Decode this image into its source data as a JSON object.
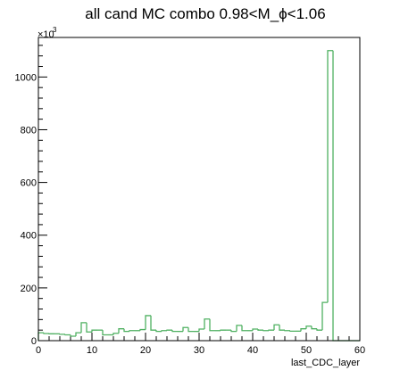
{
  "chart_data": {
    "type": "bar",
    "title": "all cand MC combo 0.98<M_ϕ<1.06",
    "xlabel": "last_CDC_layer",
    "ylabel": "",
    "y_multiplier_label": "×10",
    "y_multiplier_exponent": "3",
    "xlim": [
      0,
      60
    ],
    "ylim": [
      0,
      1150
    ],
    "x_ticks": [
      0,
      10,
      20,
      30,
      40,
      50,
      60
    ],
    "y_ticks": [
      0,
      200,
      400,
      600,
      800,
      1000
    ],
    "bin_edges": [
      0,
      1,
      2,
      3,
      4,
      5,
      6,
      7,
      8,
      9,
      10,
      11,
      12,
      13,
      14,
      15,
      16,
      17,
      18,
      19,
      20,
      21,
      22,
      23,
      24,
      25,
      26,
      27,
      28,
      29,
      30,
      31,
      32,
      33,
      34,
      35,
      36,
      37,
      38,
      39,
      40,
      41,
      42,
      43,
      44,
      45,
      46,
      47,
      48,
      49,
      50,
      51,
      52,
      53,
      54,
      55,
      56,
      57,
      58,
      59,
      60
    ],
    "values": [
      30,
      27,
      26,
      26,
      24,
      22,
      17,
      30,
      68,
      33,
      40,
      40,
      22,
      22,
      28,
      45,
      35,
      38,
      38,
      42,
      95,
      40,
      35,
      38,
      40,
      35,
      35,
      50,
      35,
      35,
      44,
      82,
      38,
      38,
      40,
      40,
      35,
      58,
      38,
      38,
      44,
      40,
      38,
      40,
      60,
      40,
      38,
      36,
      36,
      45,
      55,
      45,
      40,
      145,
      1100,
      0,
      0,
      0,
      0,
      0
    ],
    "grid": false,
    "legend": "none",
    "line_color": "#4fb061"
  }
}
